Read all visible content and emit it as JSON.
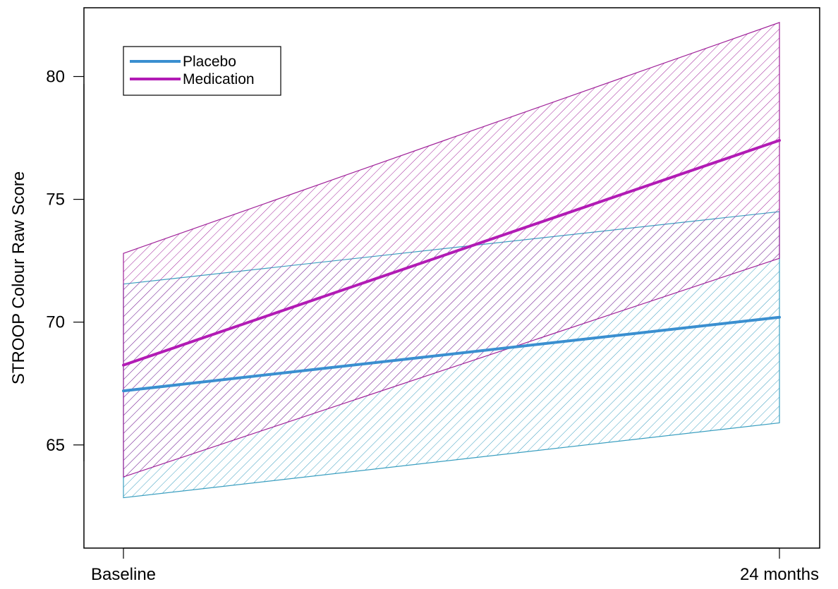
{
  "chart_data": {
    "type": "line",
    "title": "",
    "xlabel": "",
    "ylabel": "STROOP Colour Raw Score",
    "categories": [
      "Baseline",
      "24 months"
    ],
    "ylim": [
      60.8,
      82.8
    ],
    "yticks": [
      65,
      70,
      75,
      80
    ],
    "grid": false,
    "legend_position": "top-left",
    "series": [
      {
        "name": "Placebo",
        "color": "#3a8fd0",
        "band_color": "#3b9fc0",
        "values": [
          67.2,
          70.2
        ],
        "lower": [
          62.85,
          65.9
        ],
        "upper": [
          71.55,
          74.5
        ]
      },
      {
        "name": "Medication",
        "color": "#b21bb5",
        "band_color": "#a0229a",
        "values": [
          68.25,
          77.4
        ],
        "lower": [
          63.7,
          72.6
        ],
        "upper": [
          72.8,
          82.2
        ]
      }
    ]
  }
}
